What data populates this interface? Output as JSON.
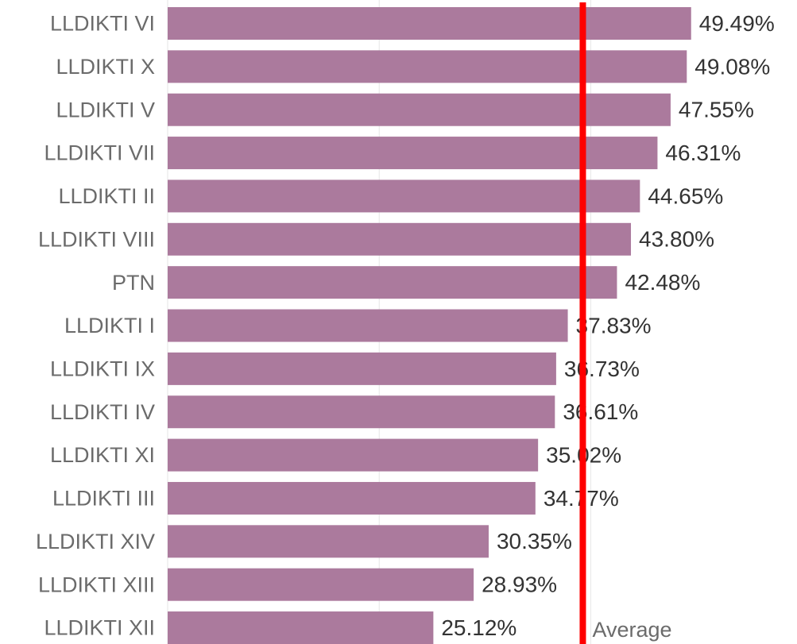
{
  "chart_data": {
    "type": "bar",
    "orientation": "horizontal",
    "categories": [
      "LLDIKTI VI",
      "LLDIKTI X",
      "LLDIKTI V",
      "LLDIKTI VII",
      "LLDIKTI II",
      "LLDIKTI VIII",
      "PTN",
      "LLDIKTI I",
      "LLDIKTI IX",
      "LLDIKTI IV",
      "LLDIKTI XI",
      "LLDIKTI III",
      "LLDIKTI XIV",
      "LLDIKTI XIII",
      "LLDIKTI XII"
    ],
    "values": [
      49.49,
      49.08,
      47.55,
      46.31,
      44.65,
      43.8,
      42.48,
      37.83,
      36.73,
      36.61,
      35.02,
      34.77,
      30.35,
      28.93,
      25.12
    ],
    "value_labels": [
      "49.49%",
      "49.08%",
      "47.55%",
      "46.31%",
      "44.65%",
      "43.80%",
      "42.48%",
      "37.83%",
      "36.73%",
      "36.61%",
      "35.02%",
      "34.77%",
      "30.35%",
      "28.93%",
      "25.12%"
    ],
    "color": "#ab7a9d",
    "xlim": [
      0,
      59.5
    ],
    "xticks": [
      0,
      20,
      40
    ],
    "grid": true,
    "reference_line": {
      "label": "Average",
      "value": 39.25,
      "color": "#ff0000"
    }
  }
}
